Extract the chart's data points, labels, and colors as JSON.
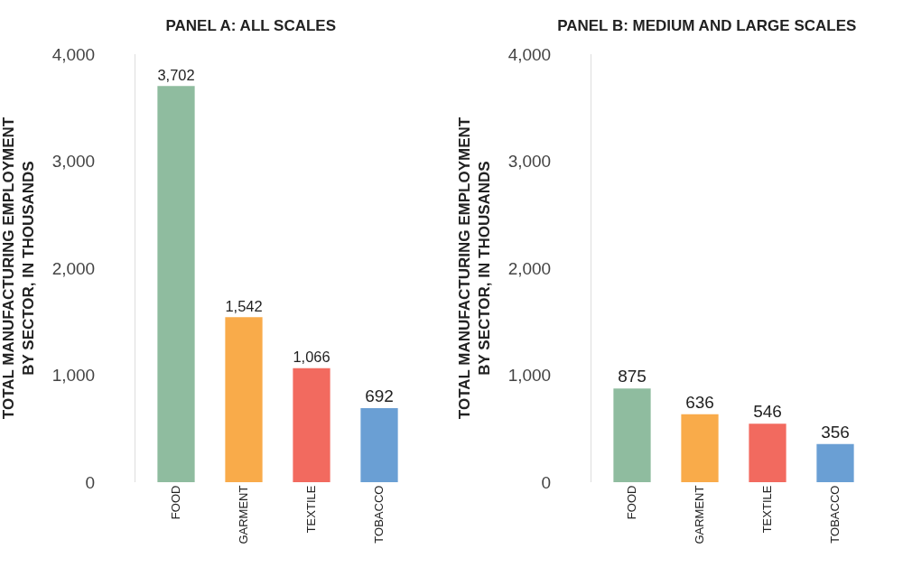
{
  "chart_data": [
    {
      "type": "bar",
      "title": "PANEL A: ALL SCALES",
      "ylabel": "TOTAL MANUFACTURING EMPLOYMENT BY SECTOR, IN THOUSANDS",
      "categories": [
        "FOOD",
        "GARMENT",
        "TEXTILE",
        "TOBACCO"
      ],
      "values": [
        3702,
        1542,
        1066,
        692
      ],
      "value_labels": [
        "3,702",
        "1,542",
        "1,066",
        "692"
      ],
      "colors": [
        "#8fbc9f",
        "#f9ab4a",
        "#f26a5f",
        "#6a9fd4"
      ],
      "ylim": [
        0,
        4000
      ],
      "yticks": [
        0,
        {
          "value": 1000,
          "label": "1,000"
        },
        {
          "value": 2000,
          "label": "2,000"
        },
        {
          "value": 3000,
          "label": "3,000"
        },
        {
          "value": 4000,
          "label": "4,000"
        }
      ]
    },
    {
      "type": "bar",
      "title": "PANEL B: MEDIUM AND LARGE SCALES",
      "ylabel": "TOTAL MANUFACTURING EMPLOYMENT BY SECTOR, IN THOUSANDS",
      "categories": [
        "FOOD",
        "GARMENT",
        "TEXTILE",
        "TOBACCO"
      ],
      "values": [
        875,
        636,
        546,
        356
      ],
      "data_labels": true,
      "colors": [
        "#8fbc9f",
        "#f9ab4a",
        "#f26a5f",
        "#6a9fd4"
      ],
      "ylim": [
        0,
        4000
      ],
      "yticks": [
        0,
        {
          "value": 1000,
          "label": "1,000"
        },
        {
          "value": 2000,
          "label": "2,000"
        },
        {
          "value": 3000,
          "label": "3,000"
        },
        {
          "value": 4000,
          "label": "4,000"
        }
      ]
    }
  ]
}
